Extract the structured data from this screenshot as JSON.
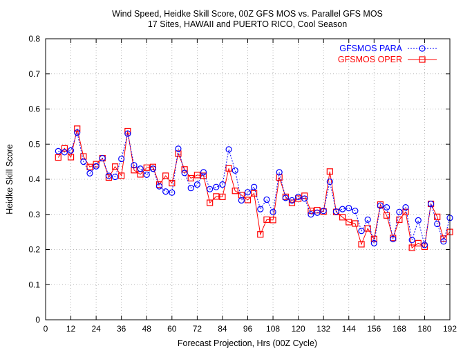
{
  "chart_data": {
    "type": "line",
    "title": [
      "Wind Speed, Heidke Skill Score, 00Z GFS MOS vs. Parallel GFS MOS",
      "17 Sites, HAWAII and PUERTO RICO, Cool Season"
    ],
    "xlabel": "Forecast Projection, Hrs (00Z Cycle)",
    "ylabel": "Heidke Skill Score",
    "xlim": [
      0,
      192
    ],
    "ylim": [
      0,
      0.8
    ],
    "xticks": [
      0,
      12,
      24,
      36,
      48,
      60,
      72,
      84,
      96,
      108,
      120,
      132,
      144,
      156,
      168,
      180,
      192
    ],
    "yticks": [
      0,
      0.1,
      0.2,
      0.3,
      0.4,
      0.5,
      0.6,
      0.7,
      0.8
    ],
    "ytick_labels": [
      "0",
      "0.1",
      "0.2",
      "0.3",
      "0.4",
      "0.5",
      "0.6",
      "0.7",
      "0.8"
    ],
    "grid": true,
    "legend_position": "top-right",
    "x": [
      6,
      9,
      12,
      15,
      18,
      21,
      24,
      27,
      30,
      33,
      36,
      39,
      42,
      45,
      48,
      51,
      54,
      57,
      60,
      63,
      66,
      69,
      72,
      75,
      78,
      81,
      84,
      87,
      90,
      93,
      96,
      99,
      102,
      105,
      108,
      111,
      114,
      117,
      120,
      123,
      126,
      129,
      132,
      135,
      138,
      141,
      144,
      147,
      150,
      153,
      156,
      159,
      162,
      165,
      168,
      171,
      174,
      177,
      180,
      183,
      186,
      189,
      192
    ],
    "series": [
      {
        "name": "GFSMOS PARA",
        "color": "#0000ff",
        "line_style": "dotted",
        "marker": "circle",
        "values": [
          0.48,
          0.477,
          0.482,
          0.533,
          0.45,
          0.417,
          0.437,
          0.46,
          0.41,
          0.407,
          0.458,
          0.53,
          0.44,
          0.43,
          0.413,
          0.43,
          0.38,
          0.365,
          0.362,
          0.487,
          0.418,
          0.375,
          0.385,
          0.42,
          0.372,
          0.378,
          0.385,
          0.485,
          0.425,
          0.34,
          0.363,
          0.378,
          0.315,
          0.342,
          0.307,
          0.42,
          0.347,
          0.34,
          0.35,
          0.345,
          0.3,
          0.305,
          0.31,
          0.393,
          0.308,
          0.315,
          0.318,
          0.31,
          0.253,
          0.285,
          0.218,
          0.325,
          0.32,
          0.23,
          0.307,
          0.32,
          0.227,
          0.283,
          0.213,
          0.33,
          0.273,
          0.223,
          0.29
        ]
      },
      {
        "name": "GFSMOS OPER",
        "color": "#ff0000",
        "line_style": "solid",
        "marker": "square",
        "values": [
          0.462,
          0.488,
          0.463,
          0.544,
          0.465,
          0.435,
          0.443,
          0.46,
          0.405,
          0.436,
          0.41,
          0.537,
          0.426,
          0.414,
          0.433,
          0.435,
          0.385,
          0.41,
          0.389,
          0.473,
          0.428,
          0.403,
          0.412,
          0.41,
          0.333,
          0.351,
          0.35,
          0.431,
          0.367,
          0.355,
          0.341,
          0.36,
          0.243,
          0.285,
          0.284,
          0.405,
          0.35,
          0.333,
          0.345,
          0.353,
          0.31,
          0.312,
          0.308,
          0.422,
          0.307,
          0.292,
          0.278,
          0.274,
          0.215,
          0.26,
          0.23,
          0.328,
          0.297,
          0.233,
          0.285,
          0.307,
          0.205,
          0.218,
          0.208,
          0.33,
          0.293,
          0.231,
          0.25
        ]
      }
    ]
  }
}
